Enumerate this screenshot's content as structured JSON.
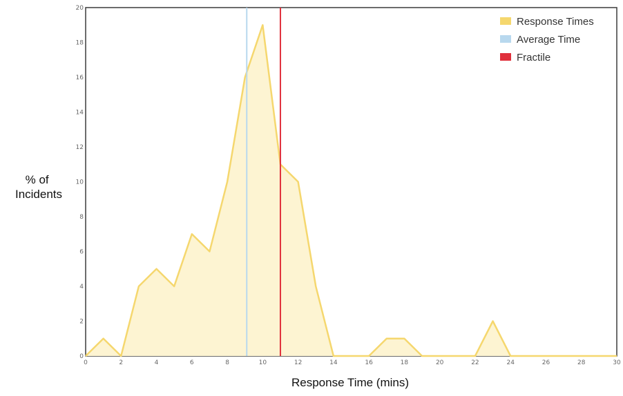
{
  "chart_data": {
    "type": "area",
    "xlabel": "Response Time (mins)",
    "ylabel_lines": [
      "% of",
      "Incidents"
    ],
    "xlim": [
      0,
      30
    ],
    "ylim": [
      0,
      20
    ],
    "xticks": [
      0,
      2,
      4,
      6,
      8,
      10,
      12,
      14,
      16,
      18,
      20,
      22,
      24,
      26,
      28,
      30
    ],
    "yticks": [
      0,
      2,
      4,
      6,
      8,
      10,
      12,
      14,
      16,
      18,
      20
    ],
    "grid": false,
    "legend_position": "top-right",
    "series": [
      {
        "name": "Response Times",
        "color": "#f5d76e",
        "fill": "#fdf4d2",
        "x": [
          0,
          1,
          2,
          3,
          4,
          5,
          6,
          7,
          8,
          9,
          10,
          11,
          12,
          13,
          14,
          15,
          16,
          17,
          18,
          19,
          20,
          21,
          22,
          23,
          24,
          25,
          26,
          27,
          28,
          29,
          30
        ],
        "y": [
          0,
          1,
          0,
          4,
          5,
          4,
          7,
          6,
          10,
          16,
          19,
          11,
          10,
          4,
          0,
          0,
          0,
          1,
          1,
          0,
          0,
          0,
          0,
          2,
          0,
          0,
          0,
          0,
          0,
          0,
          0
        ]
      }
    ],
    "vlines": [
      {
        "name": "Average Time",
        "x": 9.1,
        "color": "#b8d8ee"
      },
      {
        "name": "Fractile",
        "x": 11.0,
        "color": "#e0303c"
      }
    ]
  }
}
